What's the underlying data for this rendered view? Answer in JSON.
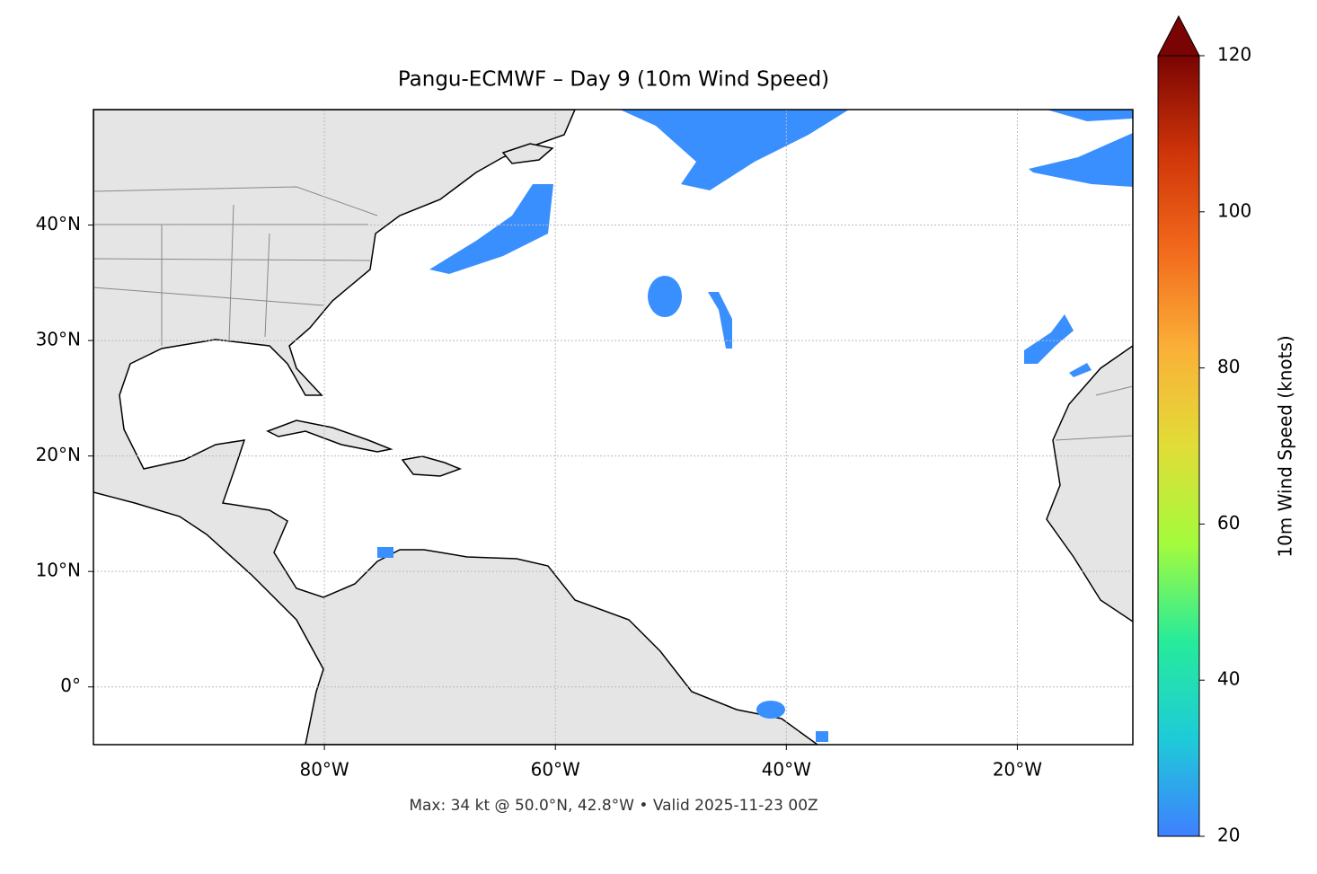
{
  "chart_data": {
    "type": "map",
    "title": "Pangu-ECMWF – Day 9 (10m Wind Speed)",
    "footnote": "Max: 34 kt @ 50.0°N, 42.8°W • Valid 2025-11-23 00Z",
    "xlim": [
      -100,
      -10
    ],
    "ylim": [
      -5,
      50
    ],
    "xticks": [
      {
        "value": -80,
        "label": "80°W"
      },
      {
        "value": -60,
        "label": "60°W"
      },
      {
        "value": -40,
        "label": "40°W"
      },
      {
        "value": -20,
        "label": "20°W"
      }
    ],
    "yticks": [
      {
        "value": 0,
        "label": "0°"
      },
      {
        "value": 10,
        "label": "10°N"
      },
      {
        "value": 20,
        "label": "20°N"
      },
      {
        "value": 30,
        "label": "30°N"
      },
      {
        "value": 40,
        "label": "40°N"
      }
    ],
    "grid": true,
    "colorbar": {
      "label": "10m Wind Speed (knots)",
      "lim": [
        20,
        120
      ],
      "ticks": [
        20,
        40,
        60,
        80,
        100,
        120
      ],
      "colors": [
        "#3f80ff",
        "#1ecbd8",
        "#27eb9a",
        "#a4fb3c",
        "#e1dd37",
        "#fbb038",
        "#f26a1c",
        "#cf3509",
        "#7a0403"
      ],
      "extend": "max"
    }
  }
}
